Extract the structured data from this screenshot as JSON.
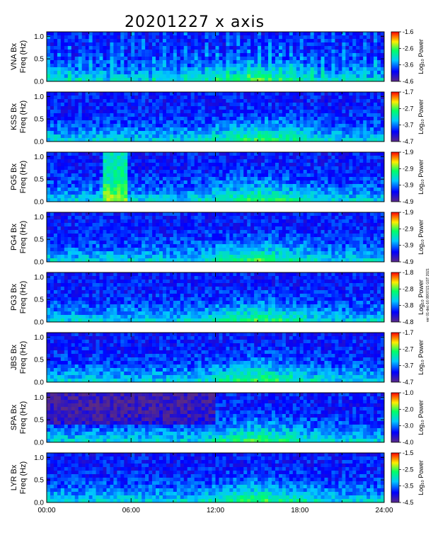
{
  "chart_data": {
    "type": "heatmap",
    "title": "20201227 x axis",
    "xlabel": "",
    "x_ticks": [
      "00:00",
      "06:00",
      "12:00",
      "18:00",
      "24:00"
    ],
    "xlim": [
      0,
      24
    ],
    "stamp": "ver 01-dec-16 08/07/21 GST 2021",
    "colorscale": [
      "#5a2a86",
      "#0000ff",
      "#00c8ff",
      "#00ff66",
      "#ffee00",
      "#ff0000"
    ],
    "panels": [
      {
        "ylabel1": "VNA Bx",
        "ylabel2": "Freq (Hz)",
        "y_ticks": [
          "0.0",
          "0.5",
          "1.0"
        ],
        "ylim": [
          0,
          1.1
        ],
        "cblabel": "Log₁₀ Power",
        "cb_ticks": [
          "-1.6",
          "-2.6",
          "-3.6",
          "-4.6"
        ],
        "cb_range": [
          -4.6,
          -1.6
        ]
      },
      {
        "ylabel1": "KSS Bx",
        "ylabel2": "Freq (Hz)",
        "y_ticks": [
          "0.0",
          "0.5",
          "1.0"
        ],
        "ylim": [
          0,
          1.1
        ],
        "cblabel": "Log₁₀ Power",
        "cb_ticks": [
          "-1.7",
          "-2.7",
          "-3.7",
          "-4.7"
        ],
        "cb_range": [
          -4.7,
          -1.7
        ]
      },
      {
        "ylabel1": "PG5 Bx",
        "ylabel2": "Freq (Hz)",
        "y_ticks": [
          "0.0",
          "0.5",
          "1.0"
        ],
        "ylim": [
          0,
          1.1
        ],
        "cblabel": "Log₁₀ Power",
        "cb_ticks": [
          "-1.9",
          "-2.9",
          "-3.9",
          "-4.9"
        ],
        "cb_range": [
          -4.9,
          -1.9
        ]
      },
      {
        "ylabel1": "PG4 Bx",
        "ylabel2": "Freq (Hz)",
        "y_ticks": [
          "0.0",
          "0.5",
          "1.0"
        ],
        "ylim": [
          0,
          1.1
        ],
        "cblabel": "Log₁₀ Power",
        "cb_ticks": [
          "-1.9",
          "-2.9",
          "-3.9",
          "-4.9"
        ],
        "cb_range": [
          -4.9,
          -1.9
        ]
      },
      {
        "ylabel1": "PG3 Bx",
        "ylabel2": "Freq (Hz)",
        "y_ticks": [
          "0.0",
          "0.5",
          "1.0"
        ],
        "ylim": [
          0,
          1.1
        ],
        "cblabel": "Log₁₀ Power",
        "cb_ticks": [
          "-1.8",
          "-2.8",
          "-3.8",
          "-4.8"
        ],
        "cb_range": [
          -4.8,
          -1.8
        ]
      },
      {
        "ylabel1": "JBS Bx",
        "ylabel2": "Freq (Hz)",
        "y_ticks": [
          "0.0",
          "0.5",
          "1.0"
        ],
        "ylim": [
          0,
          1.1
        ],
        "cblabel": "Log₁₀ Power",
        "cb_ticks": [
          "-1.7",
          "-2.7",
          "-3.7",
          "-4.7"
        ],
        "cb_range": [
          -4.7,
          -1.7
        ]
      },
      {
        "ylabel1": "SPA Bx",
        "ylabel2": "Freq (Hz)",
        "y_ticks": [
          "0.0",
          "0.5",
          "1.0"
        ],
        "ylim": [
          0,
          1.1
        ],
        "cblabel": "Log₁₀ Power",
        "cb_ticks": [
          "-1.0",
          "-2.0",
          "-3.0",
          "-4.0"
        ],
        "cb_range": [
          -4.0,
          -1.0
        ]
      },
      {
        "ylabel1": "LYR Bx",
        "ylabel2": "Freq (Hz)",
        "y_ticks": [
          "0.0",
          "0.5",
          "1.0"
        ],
        "ylim": [
          0,
          1.1
        ],
        "cblabel": "Log₁₀ Power",
        "cb_ticks": [
          "-1.5",
          "-2.5",
          "-3.5",
          "-4.5"
        ],
        "cb_range": [
          -4.5,
          -1.5
        ]
      }
    ]
  }
}
